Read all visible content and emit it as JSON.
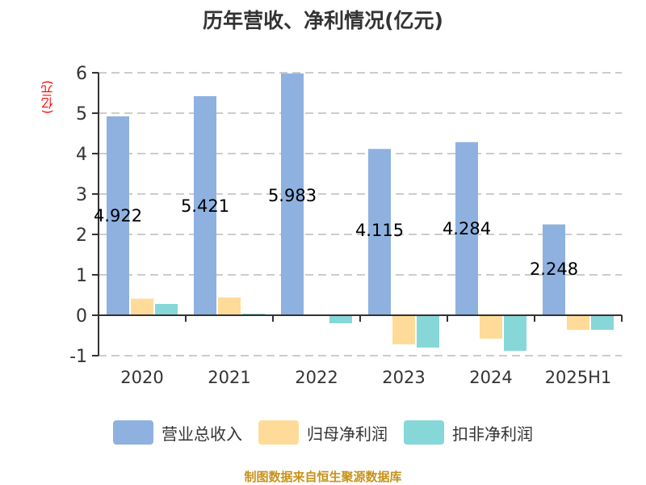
{
  "title": "历年营收、净利情况(亿元)",
  "footer": "制图数据来自恒生聚源数据库",
  "colors": {
    "revenue": "#8eb1e0",
    "net_profit": "#ffdb99",
    "deducted_profit": "#87d7d9",
    "axis": "#333333",
    "grid": "#cccccc",
    "unit_label": "#ff0000",
    "footer": "#c8921a"
  },
  "chart_data": {
    "type": "bar",
    "title": "历年营收、净利情况(亿元)",
    "xlabel": "",
    "ylabel": "(亿元)",
    "ylim": [
      -1,
      6
    ],
    "yticks": [
      -1,
      0,
      1,
      2,
      3,
      4,
      5,
      6
    ],
    "grid": true,
    "legend_position": "bottom",
    "categories": [
      "2020",
      "2021",
      "2022",
      "2023",
      "2024",
      "2025H1"
    ],
    "series": [
      {
        "name": "营业总收入",
        "values": [
          4.922,
          5.421,
          5.983,
          4.115,
          4.284,
          2.248
        ],
        "labels": [
          "4.922",
          "5.421",
          "5.983",
          "4.115",
          "4.284",
          "2.248"
        ]
      },
      {
        "name": "归母净利润",
        "values": [
          0.41,
          0.44,
          -0.02,
          -0.72,
          -0.58,
          -0.36
        ]
      },
      {
        "name": "扣非净利润",
        "values": [
          0.28,
          0.04,
          -0.2,
          -0.8,
          -0.88,
          -0.36
        ]
      }
    ]
  },
  "legend": [
    {
      "label": "营业总收入"
    },
    {
      "label": "归母净利润"
    },
    {
      "label": "扣非净利润"
    }
  ]
}
